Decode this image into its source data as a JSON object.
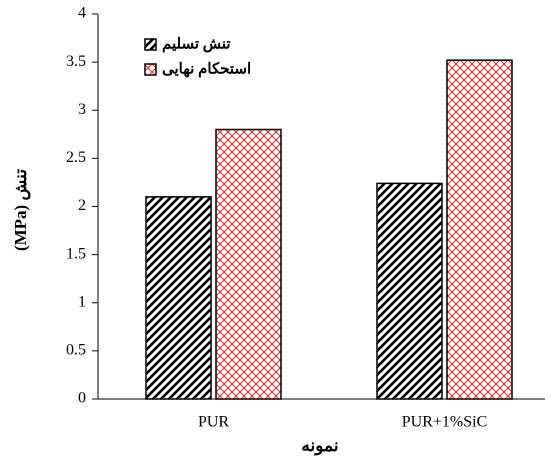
{
  "chart_data": {
    "type": "bar",
    "ylabel": "(MPa) تنش",
    "xlabel": "نمونه",
    "categories": [
      "PUR",
      "PUR+1%SiC"
    ],
    "series": [
      {
        "name": "تنش تسلیم",
        "color": "#000000",
        "values": [
          2.1,
          2.24
        ]
      },
      {
        "name": "استحکام نهایی",
        "color": "#ff0000",
        "values": [
          2.8,
          3.52
        ]
      }
    ],
    "ylim": [
      0,
      4
    ],
    "yticks": [
      0,
      0.5,
      1,
      1.5,
      2,
      2.5,
      3,
      3.5,
      4
    ],
    "legend": "upper left",
    "grid": false
  }
}
